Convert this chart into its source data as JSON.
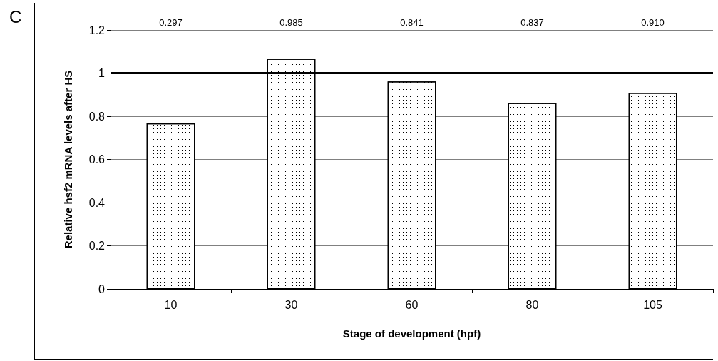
{
  "chart_data": {
    "type": "bar",
    "xlabel": "Stage of development (hpf)",
    "ylabel": "Relative hsf2 mRNA levels after HS",
    "categories": [
      "10",
      "30",
      "60",
      "80",
      "105"
    ],
    "values": [
      0.767,
      1.066,
      0.961,
      0.861,
      0.908
    ],
    "color": "#ffffff",
    "ylim": [
      0,
      1.2
    ],
    "yticks": [
      0,
      0.2,
      0.4,
      0.6,
      0.8,
      1,
      1.2
    ],
    "grid": "y",
    "ref_lines": [
      {
        "axis": "y",
        "value": 1,
        "color": "#000000"
      }
    ],
    "annotations": [
      "C",
      "0.297",
      "0.985",
      "0.841",
      "0.837",
      "0.910"
    ]
  }
}
